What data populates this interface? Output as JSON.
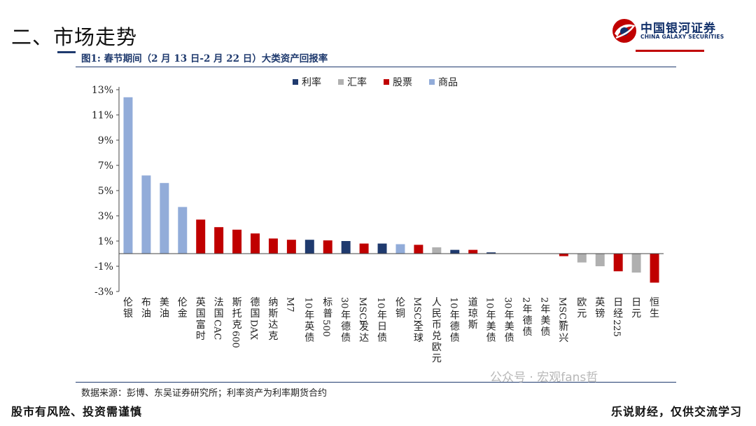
{
  "page": {
    "section_title": "二、市场走势",
    "logo_cn": "中国银河证券",
    "logo_en": "CHINA GALAXY SECURITIES",
    "figure_caption": "图1:  春节期间（2 月 13 日-2 月 22 日）大类资产回报率",
    "source": "数据来源：彭博、东吴证券研究所；利率资产为利率期货合约",
    "watermark": "公众号 · 宏观fans哲",
    "footer_left": "股市有风险、投资需谨慎",
    "footer_right": "乐说财经，仅供交流学习"
  },
  "colors": {
    "利率": "#1f3a6e",
    "汇率": "#b0b0b0",
    "股票": "#c00000",
    "商品": "#92acd9"
  },
  "chart_data": {
    "type": "bar",
    "title": "",
    "xlabel": "",
    "ylabel": "",
    "ylim": [
      -3,
      13
    ],
    "yticks": [
      -3,
      -1,
      1,
      3,
      5,
      7,
      9,
      11,
      13
    ],
    "ytick_labels": [
      "-3%",
      "-1%",
      "1%",
      "3%",
      "5%",
      "7%",
      "9%",
      "11%",
      "13%"
    ],
    "grid": false,
    "legend_position": "top-center",
    "legend": [
      "利率",
      "汇率",
      "股票",
      "商品"
    ],
    "categories": [
      "伦银",
      "布油",
      "美油",
      "伦金",
      "英国富时",
      "法国CAC",
      "斯托克600",
      "德国DAX",
      "纳斯达克",
      "M7",
      "10年英债",
      "标普500",
      "30年德债",
      "MSCI发达",
      "10年日债",
      "伦铜",
      "MSCI全球",
      "人民币兑欧元",
      "10年德债",
      "道琼斯",
      "10年美债",
      "30年美债",
      "2年德债",
      "2年美债",
      "MSCI新兴",
      "欧元",
      "英镑",
      "日经225",
      "日元",
      "恒生"
    ],
    "values": [
      12.4,
      6.2,
      5.6,
      3.7,
      2.7,
      2.1,
      1.9,
      1.6,
      1.2,
      1.1,
      1.1,
      1.05,
      1.0,
      0.8,
      0.8,
      0.75,
      0.7,
      0.5,
      0.3,
      0.3,
      0.1,
      0.0,
      0.0,
      0.0,
      -0.2,
      -0.7,
      -1.0,
      -1.4,
      -1.5,
      -2.3
    ],
    "groups": [
      "商品",
      "商品",
      "商品",
      "商品",
      "股票",
      "股票",
      "股票",
      "股票",
      "股票",
      "股票",
      "利率",
      "股票",
      "利率",
      "股票",
      "利率",
      "商品",
      "股票",
      "汇率",
      "利率",
      "股票",
      "利率",
      "利率",
      "利率",
      "利率",
      "股票",
      "汇率",
      "汇率",
      "股票",
      "汇率",
      "股票"
    ]
  }
}
